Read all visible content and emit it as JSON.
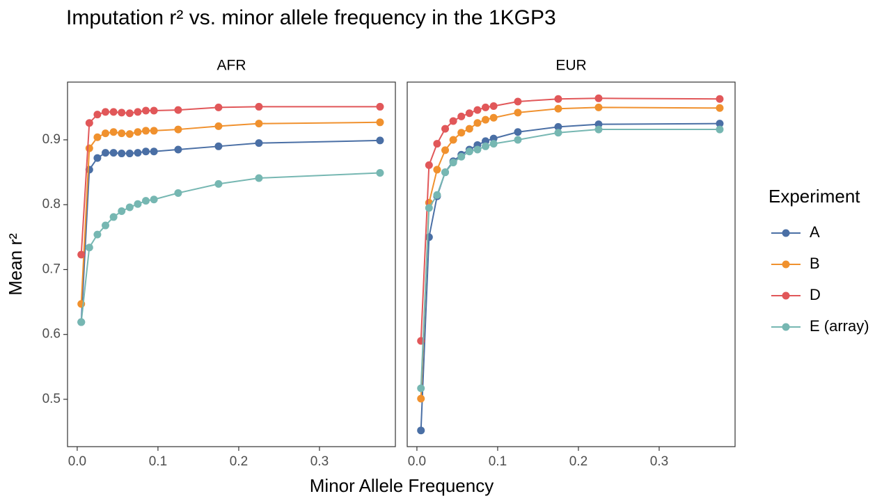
{
  "chart_data": {
    "type": "line",
    "title": "Imputation r² vs. minor allele frequency in the 1KGP3",
    "x_label": "Minor Allele Frequency",
    "y_label": "Mean  r²",
    "legend_title": "Experiment",
    "legend": "right",
    "grid": false,
    "x": [
      0.005,
      0.015,
      0.025,
      0.035,
      0.045,
      0.055,
      0.065,
      0.075,
      0.085,
      0.095,
      0.125,
      0.175,
      0.225,
      0.375
    ],
    "xlim": [
      -0.012,
      0.394
    ],
    "ylim": [
      0.427,
      0.989
    ],
    "xticks": [
      {
        "value": 0,
        "label": "0.0"
      },
      0.1,
      0.2,
      0.3
    ],
    "yticks": [
      0.5,
      0.6,
      0.7,
      0.8,
      0.9
    ],
    "series": [
      {
        "name": "A",
        "color": "#4a6fa5"
      },
      {
        "name": "B",
        "color": "#f0912e"
      },
      {
        "name": "D",
        "color": "#e15759"
      },
      {
        "name": "E (array)",
        "color": "#76b7b2"
      }
    ],
    "panels": [
      {
        "title": "AFR",
        "series": [
          {
            "values": [
              0.619,
              0.854,
              0.872,
              0.88,
              0.88,
              0.879,
              0.879,
              0.88,
              0.882,
              0.882,
              0.885,
              0.89,
              0.895,
              0.899
            ]
          },
          {
            "values": [
              0.647,
              0.887,
              0.904,
              0.91,
              0.912,
              0.91,
              0.909,
              0.912,
              0.914,
              0.914,
              0.916,
              0.921,
              0.925,
              0.927
            ]
          },
          {
            "values": [
              0.723,
              0.926,
              0.939,
              0.943,
              0.943,
              0.942,
              0.941,
              0.943,
              0.945,
              0.945,
              0.946,
              0.95,
              0.951,
              0.951
            ]
          },
          {
            "values": [
              0.619,
              0.734,
              0.754,
              0.768,
              0.781,
              0.79,
              0.796,
              0.801,
              0.806,
              0.808,
              0.818,
              0.832,
              0.841,
              0.849
            ]
          }
        ]
      },
      {
        "title": "EUR",
        "series": [
          {
            "values": [
              0.452,
              0.75,
              0.813,
              0.85,
              0.867,
              0.877,
              0.885,
              0.892,
              0.898,
              0.902,
              0.912,
              0.92,
              0.924,
              0.925
            ]
          },
          {
            "values": [
              0.501,
              0.803,
              0.854,
              0.884,
              0.9,
              0.911,
              0.917,
              0.926,
              0.931,
              0.934,
              0.942,
              0.948,
              0.95,
              0.949
            ]
          },
          {
            "values": [
              0.59,
              0.861,
              0.894,
              0.917,
              0.929,
              0.936,
              0.941,
              0.946,
              0.95,
              0.952,
              0.959,
              0.963,
              0.964,
              0.963
            ]
          },
          {
            "values": [
              0.517,
              0.795,
              0.815,
              0.85,
              0.865,
              0.874,
              0.882,
              0.885,
              0.89,
              0.894,
              0.9,
              0.911,
              0.916,
              0.916
            ]
          }
        ]
      }
    ]
  }
}
